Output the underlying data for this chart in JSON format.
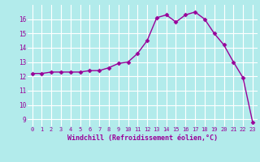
{
  "x": [
    0,
    1,
    2,
    3,
    4,
    5,
    6,
    7,
    8,
    9,
    10,
    11,
    12,
    13,
    14,
    15,
    16,
    17,
    18,
    19,
    20,
    21,
    22,
    23
  ],
  "y": [
    12.2,
    12.2,
    12.3,
    12.3,
    12.3,
    12.3,
    12.4,
    12.4,
    12.6,
    12.9,
    13.0,
    13.6,
    14.5,
    16.1,
    16.3,
    15.8,
    16.3,
    16.5,
    16.0,
    15.0,
    14.2,
    13.0,
    11.9,
    8.8
  ],
  "line_color": "#990099",
  "marker": "D",
  "marker_size": 2.5,
  "bg_color": "#b2ebeb",
  "grid_color": "#c8e8e8",
  "xlabel": "Windchill (Refroidissement éolien,°C)",
  "xlabel_color": "#990099",
  "tick_color": "#990099",
  "ylim": [
    8.5,
    17.0
  ],
  "yticks": [
    9,
    10,
    11,
    12,
    13,
    14,
    15,
    16
  ],
  "xlim": [
    -0.5,
    23.5
  ],
  "linewidth": 1.0
}
